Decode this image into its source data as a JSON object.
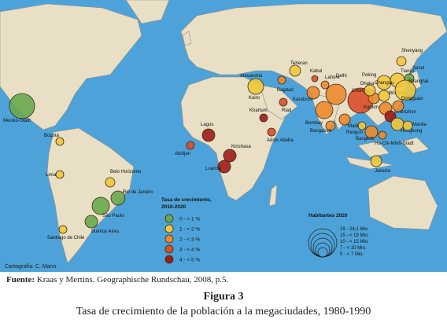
{
  "map": {
    "cities": [
      "Mexiko-Stadt",
      "Bogotá",
      "Lima",
      "Belo Horizonte",
      "Rio de Janeiro",
      "São Paulo",
      "Santiago de Chile",
      "Buenos Aires",
      "Alexandria",
      "Kairo",
      "Bagdad",
      "Teheran",
      "Riad",
      "Karatschi",
      "Kabul",
      "Lahore",
      "Delhi",
      "Bombay",
      "Bangalore",
      "Madras",
      "Dhaka",
      "Lagos",
      "Abidjan",
      "Khartum",
      "Addis Abeba",
      "Kinshasa",
      "Luanda",
      "Peking",
      "Tianjin",
      "Shenyang",
      "Seoul",
      "Chongqing",
      "Chengdu",
      "Wuhan",
      "Shanghai",
      "Kanton",
      "Shenzhen",
      "Dongguan",
      "Hongkong",
      "Rangun",
      "Bangkok",
      "Ho-Chi-Minh-Stadt",
      "Manila",
      "Jakarta"
    ],
    "growth_legend": {
      "title": [
        "Tasa de crecimiento,",
        "2010-2020"
      ],
      "items": [
        "0 - < 1 %",
        "1 - < 2 %",
        "2 - < 3 %",
        "3 - < 4 %",
        "4 - < 5 %"
      ]
    },
    "size_legend": {
      "title": "Habitantes 2020",
      "items": [
        "19 - 24,1 Mio.",
        "15 - < 19 Mio.",
        "10 - < 15 Mio.",
        "7 - < 10 Mio.",
        "5 - < 7 Mio."
      ]
    },
    "credit": "Cartografía: C. Mann"
  },
  "caption": {
    "source_label": "Fuente:",
    "source": "Kraas y Mertins. Geographische Rundschau, 2008, p.5.",
    "figure": "Figura 3",
    "title": "Tasa de crecimiento de la población a la megaciudades, 1980-1990"
  }
}
